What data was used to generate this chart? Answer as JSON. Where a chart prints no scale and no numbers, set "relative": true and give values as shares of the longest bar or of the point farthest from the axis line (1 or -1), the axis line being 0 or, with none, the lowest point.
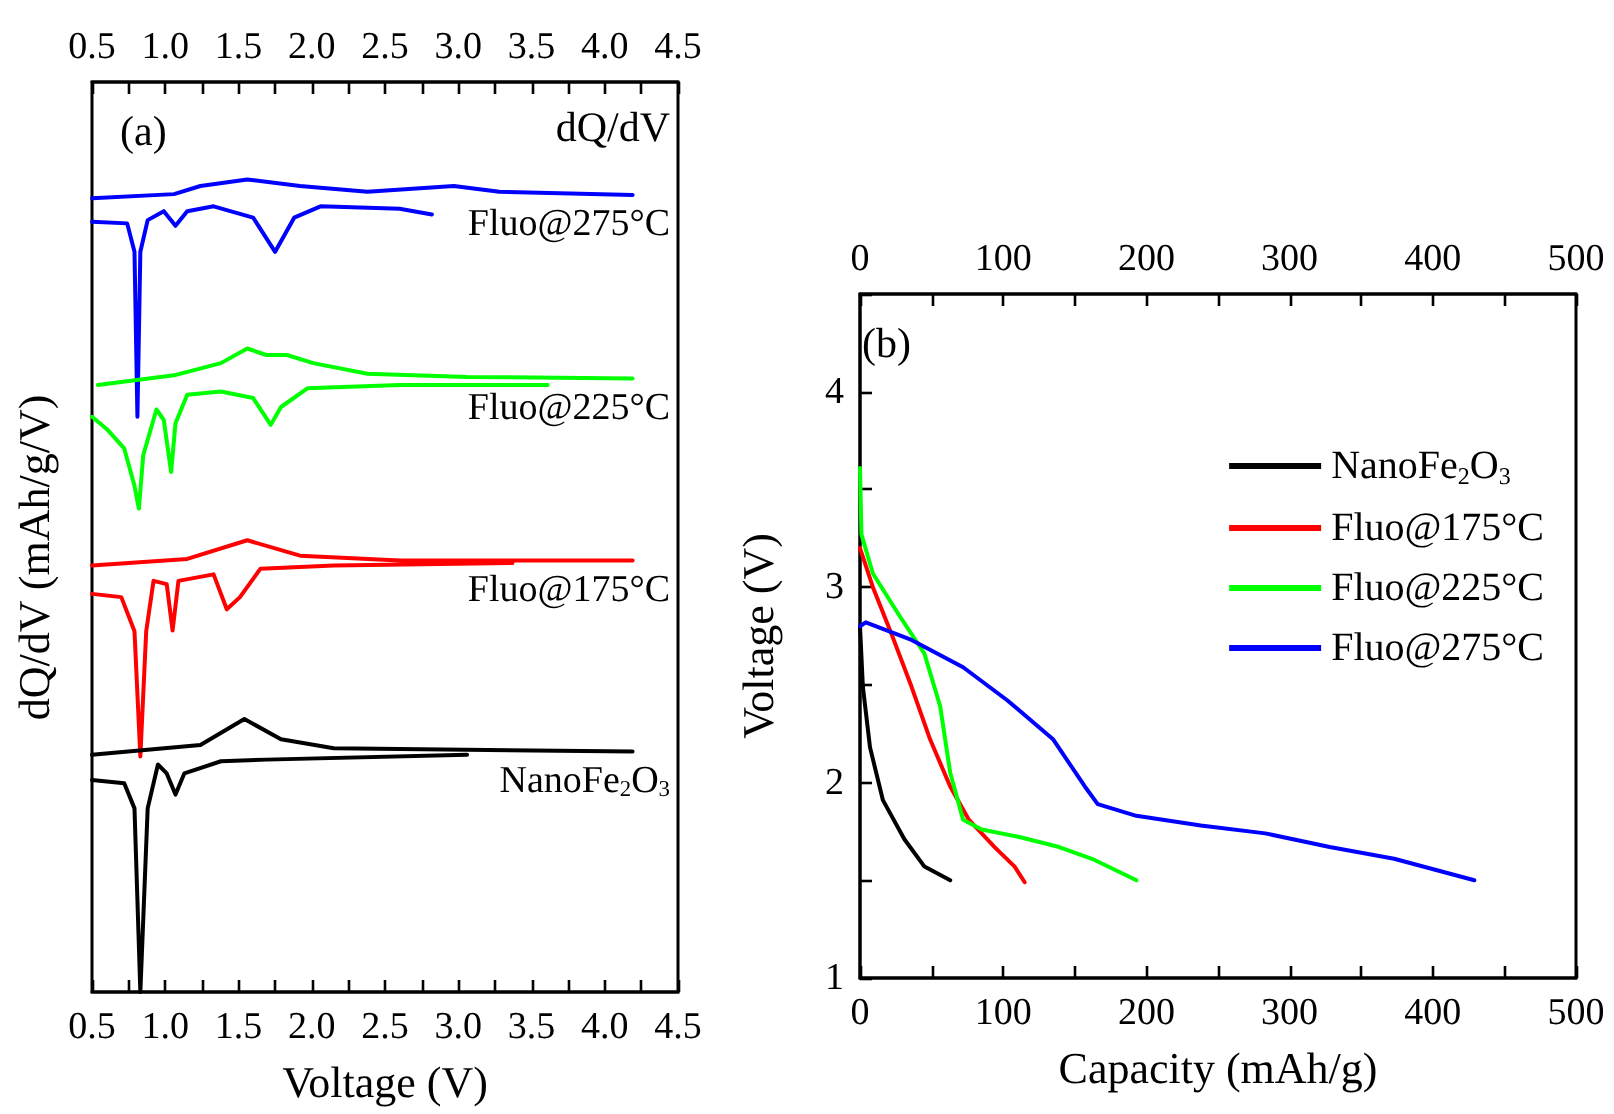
{
  "chart_data": [
    {
      "type": "line",
      "relative": true,
      "xlabel": "Voltage (V)",
      "ylabel": "dQ/dV (mAh/g/V)",
      "legend": false,
      "annotations": [
        "(a)",
        "dQ/dV"
      ],
      "xlim": [
        0.5,
        4.5
      ],
      "xticks": [
        {
          "value": 0.5,
          "label": "0.5"
        },
        {
          "value": 0.75,
          "label": null
        },
        {
          "value": 1,
          "label": "1.0"
        },
        {
          "value": 1.25,
          "label": null
        },
        {
          "value": 1.5,
          "label": "1.5"
        },
        {
          "value": 1.75,
          "label": null
        },
        {
          "value": 2,
          "label": "2.0"
        },
        {
          "value": 2.25,
          "label": null
        },
        {
          "value": 2.5,
          "label": "2.5"
        },
        {
          "value": 2.75,
          "label": null
        },
        {
          "value": 3,
          "label": "3.0"
        },
        {
          "value": 3.25,
          "label": null
        },
        {
          "value": 3.5,
          "label": "3.5"
        },
        {
          "value": 3.75,
          "label": null
        },
        {
          "value": 4,
          "label": "4.0"
        },
        {
          "value": 4.25,
          "label": null
        },
        {
          "value": 4.5,
          "label": "4.5"
        }
      ],
      "x2lim": [
        0.5,
        4.5
      ],
      "x2ticks": [
        {
          "value": 0.5,
          "label": "0.5"
        },
        {
          "value": 0.75,
          "label": null
        },
        {
          "value": 1,
          "label": "1.0"
        },
        {
          "value": 1.25,
          "label": null
        },
        {
          "value": 1.5,
          "label": "1.5"
        },
        {
          "value": 1.75,
          "label": null
        },
        {
          "value": 2,
          "label": "2.0"
        },
        {
          "value": 2.25,
          "label": null
        },
        {
          "value": 2.5,
          "label": "2.5"
        },
        {
          "value": 2.75,
          "label": null
        },
        {
          "value": 3,
          "label": "3.0"
        },
        {
          "value": 3.25,
          "label": null
        },
        {
          "value": 3.5,
          "label": "3.5"
        },
        {
          "value": 3.75,
          "label": null
        },
        {
          "value": 4,
          "label": "4.0"
        },
        {
          "value": 4.25,
          "label": null
        },
        {
          "value": 4.5,
          "label": "4.5"
        }
      ],
      "series": [
        {
          "name": "Fluo@275°C",
          "color": "#0000ff",
          "x": [
            0.5,
            0.74,
            0.79,
            0.81,
            0.83,
            0.88,
            0.99,
            1.07,
            1.15,
            1.33,
            1.6,
            1.75,
            1.88,
            2.06,
            2.6,
            2.82,
            null,
            0.5,
            1.06,
            1.24,
            1.56,
            1.92,
            2.38,
            2.97,
            3.28,
            4.19
          ],
          "values": [
            0.948,
            0.946,
            0.911,
            0.708,
            0.911,
            0.95,
            0.961,
            0.943,
            0.961,
            0.967,
            0.953,
            0.911,
            0.953,
            0.967,
            0.964,
            0.957,
            null,
            0.977,
            0.982,
            0.992,
            1.0,
            0.992,
            0.985,
            0.992,
            0.985,
            0.981
          ]
        },
        {
          "name": "Fluo@225°C",
          "color": "#00ff00",
          "x": [
            0.5,
            0.6,
            0.72,
            0.79,
            0.82,
            0.85,
            0.94,
            0.99,
            1.04,
            1.07,
            1.15,
            1.38,
            1.6,
            1.72,
            1.79,
            1.97,
            2.6,
            3.61,
            null,
            0.54,
            1.06,
            1.38,
            1.56,
            1.69,
            1.83,
            2.01,
            2.38,
            3.06,
            4.19
          ],
          "values": [
            0.708,
            0.693,
            0.669,
            0.623,
            0.595,
            0.661,
            0.717,
            0.704,
            0.64,
            0.7,
            0.735,
            0.739,
            0.731,
            0.698,
            0.72,
            0.743,
            0.747,
            0.747,
            null,
            0.747,
            0.759,
            0.774,
            0.792,
            0.784,
            0.784,
            0.774,
            0.761,
            0.757,
            0.755
          ]
        },
        {
          "name": "Fluo@175°C",
          "color": "#ff0000",
          "x": [
            0.5,
            0.7,
            0.79,
            0.83,
            0.87,
            0.92,
            1.01,
            1.05,
            1.09,
            1.33,
            1.42,
            1.51,
            1.65,
            2.15,
            3.37,
            null,
            0.5,
            1.15,
            1.56,
            1.92,
            2.6,
            4.19
          ],
          "values": [
            0.49,
            0.486,
            0.444,
            0.29,
            0.444,
            0.506,
            0.502,
            0.445,
            0.506,
            0.514,
            0.471,
            0.486,
            0.521,
            0.525,
            0.528,
            null,
            0.525,
            0.533,
            0.556,
            0.537,
            0.531,
            0.531
          ]
        },
        {
          "name": "NanoFe$_{2}$O$_{3}$",
          "color": "#000000",
          "x": [
            0.5,
            0.72,
            0.79,
            0.83,
            0.88,
            0.95,
            1.01,
            1.07,
            1.13,
            1.38,
            1.69,
            3.06,
            null,
            0.5,
            1.24,
            1.54,
            1.79,
            2.15,
            4.19
          ],
          "values": [
            0.261,
            0.257,
            0.226,
            0,
            0.226,
            0.28,
            0.269,
            0.243,
            0.269,
            0.284,
            0.286,
            0.292,
            null,
            0.292,
            0.304,
            0.336,
            0.311,
            0.3,
            0.296
          ]
        }
      ]
    },
    {
      "type": "line",
      "xlabel": "Capacity (mAh/g)",
      "ylabel": "Voltage (V)",
      "legend": "right",
      "annotations": [
        "(b)"
      ],
      "xlim": [
        0,
        500
      ],
      "xticks": [
        0,
        {
          "value": 50,
          "label": null
        },
        100,
        {
          "value": 150,
          "label": null
        },
        200,
        {
          "value": 250,
          "label": null
        },
        300,
        {
          "value": 350,
          "label": null
        },
        400,
        {
          "value": 450,
          "label": null
        },
        500
      ],
      "x2lim": [
        0,
        500
      ],
      "x2ticks": [
        0,
        {
          "value": 50,
          "label": null
        },
        100,
        {
          "value": 150,
          "label": null
        },
        200,
        {
          "value": 250,
          "label": null
        },
        300,
        {
          "value": 350,
          "label": null
        },
        400,
        {
          "value": 450,
          "label": null
        },
        500
      ],
      "ylim": [
        1,
        4.5
      ],
      "yticks": [
        1,
        {
          "value": 1.5,
          "label": null
        },
        2,
        {
          "value": 2.5,
          "label": null
        },
        3,
        {
          "value": 3.5,
          "label": null
        },
        4,
        {
          "value": 4.5,
          "label": null
        }
      ],
      "series": [
        {
          "name": "NanoFe$_{2}$O$_{3}$",
          "color": "#000000",
          "x": [
            0,
            2,
            7,
            16,
            31,
            45,
            63
          ],
          "values": [
            2.8,
            2.49,
            2.18,
            1.91,
            1.71,
            1.57,
            1.5
          ]
        },
        {
          "name": "Fluo@175°C",
          "color": "#ff0000",
          "x": [
            0,
            9,
            22,
            36,
            49,
            63,
            76,
            94,
            108,
            115
          ],
          "values": [
            3.2,
            3.0,
            2.76,
            2.49,
            2.22,
            1.98,
            1.81,
            1.67,
            1.57,
            1.49
          ]
        },
        {
          "name": "Fluo@225°C",
          "color": "#00ff00",
          "x": [
            0,
            1,
            9,
            27,
            45,
            56,
            63,
            72,
            85,
            112,
            139,
            162,
            193
          ],
          "values": [
            3.61,
            3.27,
            3.07,
            2.86,
            2.66,
            2.39,
            2.05,
            1.81,
            1.76,
            1.72,
            1.67,
            1.61,
            1.5
          ]
        },
        {
          "name": "Fluo@275°C",
          "color": "#0000ff",
          "x": [
            0,
            4,
            36,
            72,
            103,
            135,
            157,
            166,
            193,
            238,
            283,
            328,
            373,
            429
          ],
          "values": [
            2.8,
            2.82,
            2.73,
            2.59,
            2.42,
            2.22,
            1.98,
            1.89,
            1.83,
            1.78,
            1.74,
            1.67,
            1.61,
            1.5
          ]
        }
      ]
    }
  ]
}
